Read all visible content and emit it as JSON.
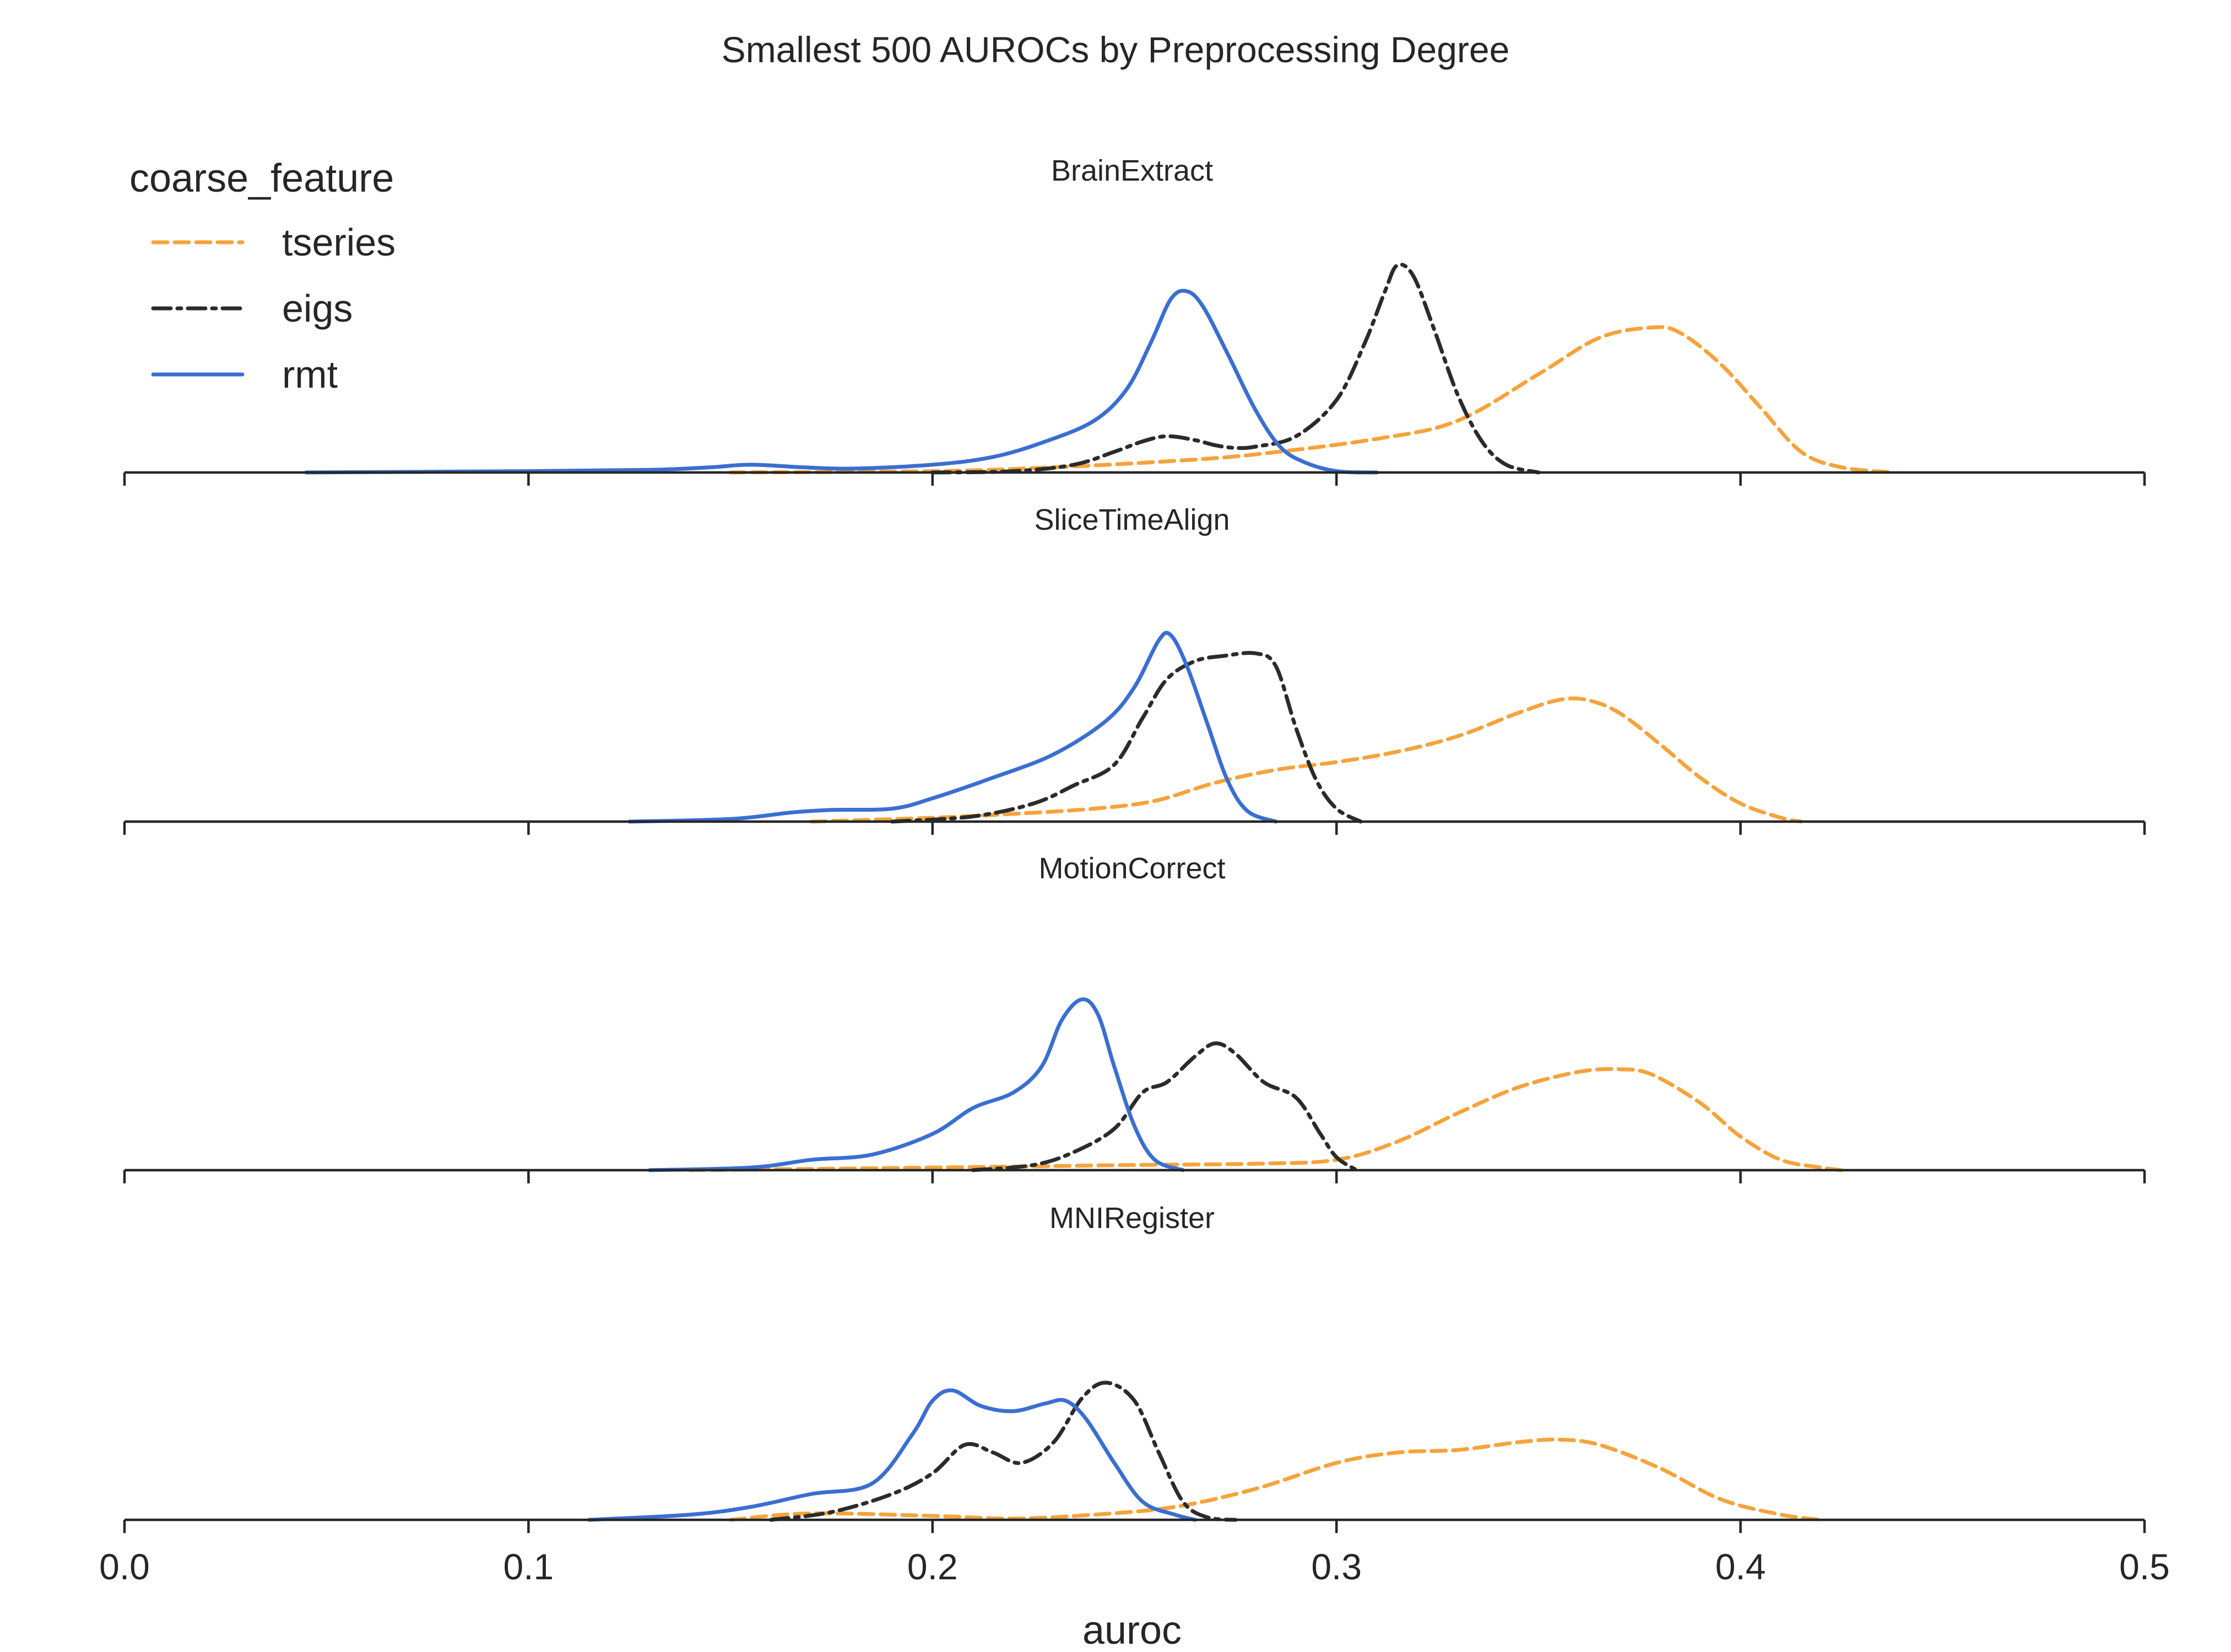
{
  "chart_data": {
    "type": "line",
    "subtype": "kde-facets",
    "title": "Smallest 500 AUROCs by Preprocessing Degree",
    "xlabel": "auroc",
    "xlim": [
      0.0,
      0.5
    ],
    "xticks": [
      0.0,
      0.1,
      0.2,
      0.3,
      0.4,
      0.5
    ],
    "xtick_labels": [
      "0.0",
      "0.1",
      "0.2",
      "0.3",
      "0.4",
      "0.5"
    ],
    "grid": false,
    "legend": {
      "title": "coarse_feature",
      "placement": "top-left",
      "entries": [
        {
          "name": "tseries",
          "color": "#f5a33c",
          "dash": "dashed"
        },
        {
          "name": "eigs",
          "color": "#2b2b2b",
          "dash": "dashdot"
        },
        {
          "name": "rmt",
          "color": "#3a6fd0",
          "dash": "solid"
        }
      ]
    },
    "facets": [
      {
        "title": "BrainExtract",
        "ymax": 1.0,
        "series": [
          {
            "name": "tseries",
            "points": [
              [
                0.15,
                0
              ],
              [
                0.2,
                0.005
              ],
              [
                0.23,
                0.02
              ],
              [
                0.26,
                0.045
              ],
              [
                0.28,
                0.07
              ],
              [
                0.31,
                0.13
              ],
              [
                0.33,
                0.2
              ],
              [
                0.35,
                0.38
              ],
              [
                0.365,
                0.52
              ],
              [
                0.378,
                0.56
              ],
              [
                0.385,
                0.54
              ],
              [
                0.395,
                0.42
              ],
              [
                0.405,
                0.25
              ],
              [
                0.415,
                0.08
              ],
              [
                0.425,
                0.02
              ],
              [
                0.438,
                0
              ]
            ]
          },
          {
            "name": "eigs",
            "points": [
              [
                0.2,
                0
              ],
              [
                0.22,
                0.005
              ],
              [
                0.235,
                0.03
              ],
              [
                0.245,
                0.08
              ],
              [
                0.252,
                0.12
              ],
              [
                0.258,
                0.14
              ],
              [
                0.265,
                0.125
              ],
              [
                0.27,
                0.105
              ],
              [
                0.275,
                0.095
              ],
              [
                0.28,
                0.1
              ],
              [
                0.29,
                0.14
              ],
              [
                0.3,
                0.28
              ],
              [
                0.307,
                0.5
              ],
              [
                0.312,
                0.7
              ],
              [
                0.315,
                0.8
              ],
              [
                0.319,
                0.76
              ],
              [
                0.324,
                0.56
              ],
              [
                0.33,
                0.3
              ],
              [
                0.336,
                0.12
              ],
              [
                0.342,
                0.03
              ],
              [
                0.35,
                0
              ]
            ]
          },
          {
            "name": "rmt",
            "points": [
              [
                0.045,
                0
              ],
              [
                0.1,
                0.005
              ],
              [
                0.13,
                0.01
              ],
              [
                0.145,
                0.02
              ],
              [
                0.155,
                0.03
              ],
              [
                0.168,
                0.02
              ],
              [
                0.18,
                0.015
              ],
              [
                0.2,
                0.03
              ],
              [
                0.215,
                0.06
              ],
              [
                0.228,
                0.12
              ],
              [
                0.24,
                0.2
              ],
              [
                0.248,
                0.32
              ],
              [
                0.254,
                0.5
              ],
              [
                0.259,
                0.67
              ],
              [
                0.263,
                0.7
              ],
              [
                0.267,
                0.64
              ],
              [
                0.273,
                0.46
              ],
              [
                0.28,
                0.24
              ],
              [
                0.286,
                0.1
              ],
              [
                0.292,
                0.04
              ],
              [
                0.3,
                0.005
              ],
              [
                0.31,
                0
              ]
            ]
          }
        ]
      },
      {
        "title": "SliceTimeAlign",
        "ymax": 1.0,
        "series": [
          {
            "name": "tseries",
            "points": [
              [
                0.17,
                0
              ],
              [
                0.2,
                0.015
              ],
              [
                0.22,
                0.03
              ],
              [
                0.24,
                0.05
              ],
              [
                0.255,
                0.08
              ],
              [
                0.27,
                0.15
              ],
              [
                0.285,
                0.2
              ],
              [
                0.3,
                0.23
              ],
              [
                0.315,
                0.27
              ],
              [
                0.33,
                0.33
              ],
              [
                0.345,
                0.42
              ],
              [
                0.355,
                0.47
              ],
              [
                0.362,
                0.47
              ],
              [
                0.37,
                0.42
              ],
              [
                0.38,
                0.3
              ],
              [
                0.39,
                0.17
              ],
              [
                0.4,
                0.07
              ],
              [
                0.41,
                0.015
              ],
              [
                0.415,
                0
              ]
            ]
          },
          {
            "name": "eigs",
            "points": [
              [
                0.19,
                0
              ],
              [
                0.21,
                0.02
              ],
              [
                0.225,
                0.07
              ],
              [
                0.235,
                0.14
              ],
              [
                0.245,
                0.22
              ],
              [
                0.252,
                0.4
              ],
              [
                0.258,
                0.55
              ],
              [
                0.265,
                0.62
              ],
              [
                0.272,
                0.64
              ],
              [
                0.28,
                0.65
              ],
              [
                0.285,
                0.6
              ],
              [
                0.29,
                0.36
              ],
              [
                0.295,
                0.16
              ],
              [
                0.3,
                0.05
              ],
              [
                0.306,
                0
              ]
            ]
          },
          {
            "name": "rmt",
            "points": [
              [
                0.125,
                0
              ],
              [
                0.15,
                0.01
              ],
              [
                0.165,
                0.035
              ],
              [
                0.175,
                0.045
              ],
              [
                0.19,
                0.05
              ],
              [
                0.2,
                0.09
              ],
              [
                0.215,
                0.17
              ],
              [
                0.23,
                0.26
              ],
              [
                0.243,
                0.39
              ],
              [
                0.25,
                0.52
              ],
              [
                0.256,
                0.7
              ],
              [
                0.259,
                0.72
              ],
              [
                0.263,
                0.6
              ],
              [
                0.268,
                0.38
              ],
              [
                0.273,
                0.16
              ],
              [
                0.278,
                0.04
              ],
              [
                0.285,
                0
              ]
            ]
          }
        ]
      },
      {
        "title": "MotionCorrect",
        "ymax": 1.0,
        "series": [
          {
            "name": "tseries",
            "points": [
              [
                0.14,
                0
              ],
              [
                0.2,
                0.01
              ],
              [
                0.25,
                0.02
              ],
              [
                0.28,
                0.025
              ],
              [
                0.3,
                0.04
              ],
              [
                0.315,
                0.11
              ],
              [
                0.33,
                0.22
              ],
              [
                0.345,
                0.32
              ],
              [
                0.36,
                0.38
              ],
              [
                0.37,
                0.39
              ],
              [
                0.378,
                0.37
              ],
              [
                0.39,
                0.26
              ],
              [
                0.4,
                0.13
              ],
              [
                0.41,
                0.04
              ],
              [
                0.42,
                0.01
              ],
              [
                0.425,
                0
              ]
            ]
          },
          {
            "name": "eigs",
            "points": [
              [
                0.21,
                0
              ],
              [
                0.225,
                0.02
              ],
              [
                0.235,
                0.07
              ],
              [
                0.245,
                0.16
              ],
              [
                0.252,
                0.3
              ],
              [
                0.258,
                0.34
              ],
              [
                0.265,
                0.44
              ],
              [
                0.27,
                0.49
              ],
              [
                0.275,
                0.45
              ],
              [
                0.282,
                0.34
              ],
              [
                0.29,
                0.28
              ],
              [
                0.296,
                0.14
              ],
              [
                0.3,
                0.05
              ],
              [
                0.305,
                0
              ]
            ]
          },
          {
            "name": "rmt",
            "points": [
              [
                0.13,
                0
              ],
              [
                0.155,
                0.01
              ],
              [
                0.17,
                0.04
              ],
              [
                0.185,
                0.06
              ],
              [
                0.2,
                0.14
              ],
              [
                0.21,
                0.24
              ],
              [
                0.22,
                0.3
              ],
              [
                0.227,
                0.4
              ],
              [
                0.232,
                0.58
              ],
              [
                0.237,
                0.66
              ],
              [
                0.241,
                0.6
              ],
              [
                0.245,
                0.4
              ],
              [
                0.25,
                0.17
              ],
              [
                0.255,
                0.04
              ],
              [
                0.262,
                0
              ]
            ]
          }
        ]
      },
      {
        "title": "MNIRegister",
        "ymax": 1.0,
        "series": [
          {
            "name": "tseries",
            "points": [
              [
                0.15,
                0
              ],
              [
                0.17,
                0.025
              ],
              [
                0.2,
                0.015
              ],
              [
                0.22,
                0.005
              ],
              [
                0.24,
                0.02
              ],
              [
                0.26,
                0.05
              ],
              [
                0.28,
                0.12
              ],
              [
                0.3,
                0.22
              ],
              [
                0.315,
                0.26
              ],
              [
                0.33,
                0.27
              ],
              [
                0.345,
                0.3
              ],
              [
                0.355,
                0.31
              ],
              [
                0.365,
                0.29
              ],
              [
                0.38,
                0.2
              ],
              [
                0.395,
                0.08
              ],
              [
                0.41,
                0.02
              ],
              [
                0.42,
                0
              ]
            ]
          },
          {
            "name": "eigs",
            "points": [
              [
                0.16,
                0
              ],
              [
                0.175,
                0.03
              ],
              [
                0.19,
                0.1
              ],
              [
                0.2,
                0.18
              ],
              [
                0.208,
                0.29
              ],
              [
                0.215,
                0.26
              ],
              [
                0.222,
                0.22
              ],
              [
                0.23,
                0.3
              ],
              [
                0.237,
                0.47
              ],
              [
                0.243,
                0.53
              ],
              [
                0.25,
                0.46
              ],
              [
                0.256,
                0.26
              ],
              [
                0.262,
                0.07
              ],
              [
                0.268,
                0.01
              ],
              [
                0.275,
                0
              ]
            ]
          },
          {
            "name": "rmt",
            "points": [
              [
                0.115,
                0
              ],
              [
                0.14,
                0.02
              ],
              [
                0.155,
                0.05
              ],
              [
                0.17,
                0.1
              ],
              [
                0.185,
                0.14
              ],
              [
                0.195,
                0.33
              ],
              [
                0.2,
                0.46
              ],
              [
                0.205,
                0.5
              ],
              [
                0.212,
                0.44
              ],
              [
                0.22,
                0.42
              ],
              [
                0.228,
                0.45
              ],
              [
                0.233,
                0.46
              ],
              [
                0.238,
                0.39
              ],
              [
                0.245,
                0.22
              ],
              [
                0.252,
                0.07
              ],
              [
                0.26,
                0.02
              ],
              [
                0.265,
                0
              ]
            ]
          }
        ]
      }
    ]
  }
}
